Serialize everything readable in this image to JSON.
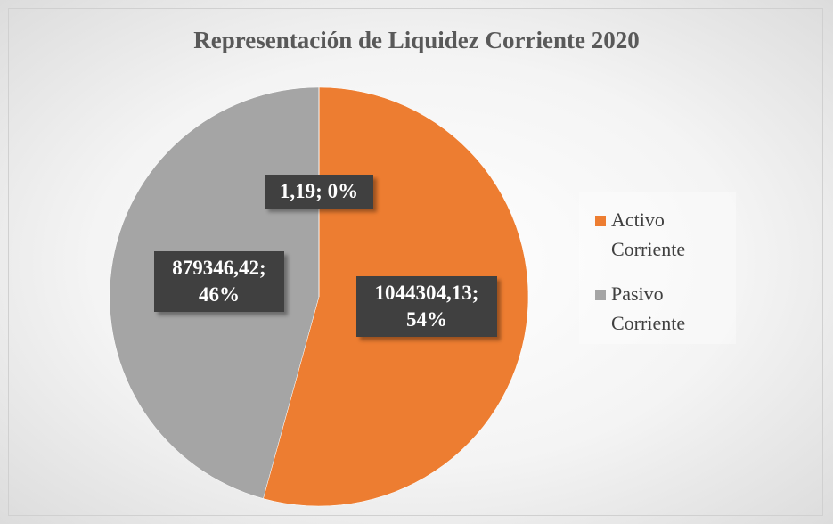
{
  "chart_data": {
    "type": "pie",
    "title": "Representación de Liquidez Corriente 2020",
    "categories": [
      "Activo Corriente",
      "Pasivo Corriente",
      null
    ],
    "values": [
      1044304.13,
      879346.42,
      1.19
    ],
    "value_labels": [
      "1044304,13; 54%",
      "879346,42; 46%",
      "1,19; 0%"
    ],
    "colors": [
      "#ed7d31",
      "#a5a5a5",
      "#4472c4"
    ],
    "legend": "right"
  }
}
